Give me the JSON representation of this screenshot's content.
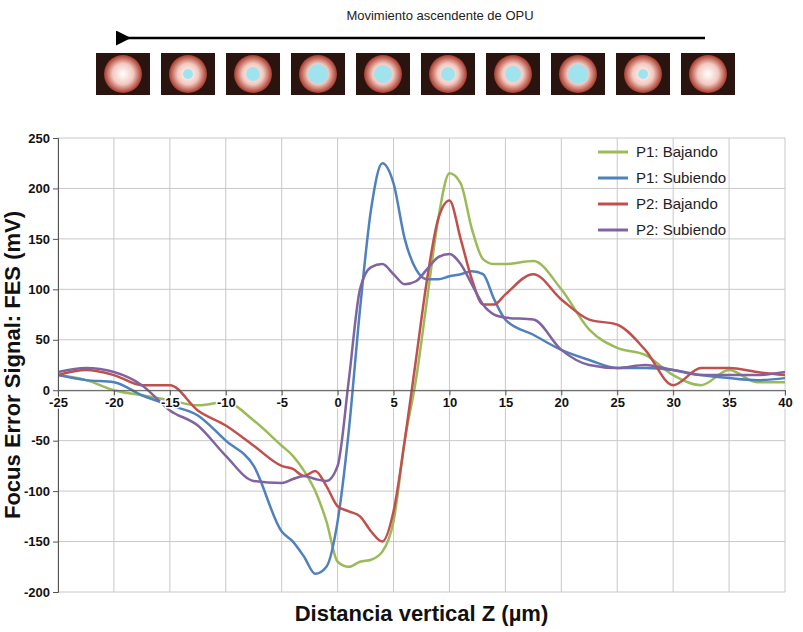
{
  "chart_data": {
    "type": "line",
    "annotation": "Movimiento ascendente de OPU",
    "x_label": "Distancia vertical Z (µm)",
    "y_label": "Focus Error Signal: FES (mV)",
    "x": [
      -25,
      -22.5,
      -20,
      -17.5,
      -15,
      -12.5,
      -10,
      -7.5,
      -5,
      -4,
      -3,
      -2,
      -1,
      0,
      1,
      2,
      3,
      4,
      5,
      6,
      7,
      8,
      9,
      10,
      11,
      12,
      13,
      14,
      15,
      17.5,
      20,
      22.5,
      25,
      27.5,
      30,
      32.5,
      35,
      37.5,
      40
    ],
    "series": [
      {
        "name": "P1: Bajando",
        "color": "#9bbb59",
        "values": [
          15,
          10,
          0,
          -5,
          -10,
          -15,
          -12,
          -30,
          -55,
          -65,
          -80,
          -100,
          -130,
          -170,
          -175,
          -170,
          -168,
          -160,
          -130,
          -50,
          10,
          90,
          170,
          215,
          205,
          160,
          130,
          125,
          125,
          128,
          100,
          60,
          42,
          35,
          15,
          5,
          20,
          8,
          8
        ]
      },
      {
        "name": "P1: Subiendo",
        "color": "#4f81bd",
        "values": [
          15,
          10,
          8,
          -5,
          -15,
          -25,
          -50,
          -75,
          -140,
          -150,
          -165,
          -182,
          -175,
          -130,
          -40,
          80,
          180,
          225,
          205,
          150,
          120,
          110,
          110,
          113,
          115,
          118,
          115,
          90,
          70,
          55,
          40,
          30,
          22,
          22,
          20,
          15,
          12,
          10,
          12
        ]
      },
      {
        "name": "P2: Bajando",
        "color": "#c0504d",
        "values": [
          15,
          20,
          15,
          5,
          5,
          -20,
          -35,
          -55,
          -75,
          -78,
          -85,
          -80,
          -95,
          -115,
          -120,
          -125,
          -140,
          -150,
          -120,
          -50,
          30,
          110,
          170,
          188,
          150,
          110,
          85,
          85,
          95,
          115,
          90,
          70,
          65,
          40,
          5,
          22,
          22,
          18,
          15
        ]
      },
      {
        "name": "P2: Subiendo",
        "color": "#8064a2",
        "values": [
          18,
          22,
          18,
          5,
          -20,
          -35,
          -65,
          -90,
          -92,
          -88,
          -85,
          -88,
          -90,
          -75,
          10,
          100,
          122,
          125,
          115,
          105,
          108,
          120,
          132,
          135,
          125,
          105,
          85,
          75,
          72,
          70,
          40,
          25,
          22,
          25,
          20,
          15,
          15,
          15,
          18
        ]
      }
    ],
    "xlim": [
      -25,
      40
    ],
    "ylim": [
      -200,
      250
    ],
    "xticks": [
      -25,
      -20,
      -15,
      -10,
      -5,
      0,
      5,
      10,
      15,
      20,
      25,
      30,
      35,
      40
    ],
    "yticks": [
      -200,
      -150,
      -100,
      -50,
      0,
      50,
      100,
      150,
      200,
      250
    ],
    "grid": true,
    "legend": "top-right"
  }
}
